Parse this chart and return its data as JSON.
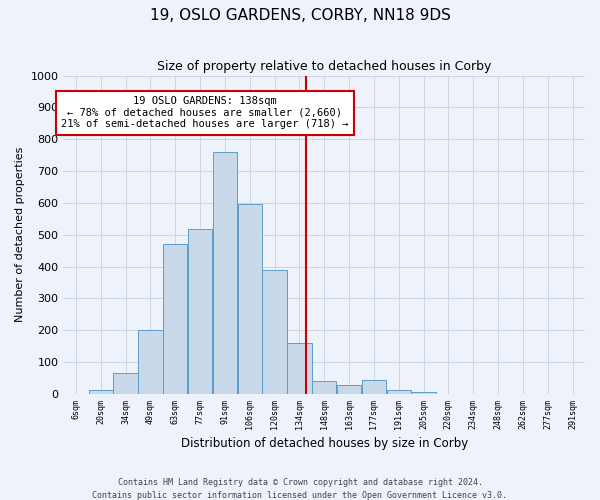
{
  "title": "19, OSLO GARDENS, CORBY, NN18 9DS",
  "subtitle": "Size of property relative to detached houses in Corby",
  "xlabel": "Distribution of detached houses by size in Corby",
  "ylabel": "Number of detached properties",
  "bar_labels": [
    "6sqm",
    "20sqm",
    "34sqm",
    "49sqm",
    "63sqm",
    "77sqm",
    "91sqm",
    "106sqm",
    "120sqm",
    "134sqm",
    "148sqm",
    "163sqm",
    "177sqm",
    "191sqm",
    "205sqm",
    "220sqm",
    "234sqm",
    "248sqm",
    "262sqm",
    "277sqm",
    "291sqm"
  ],
  "bar_values": [
    0,
    13,
    65,
    200,
    470,
    518,
    760,
    597,
    390,
    160,
    40,
    27,
    43,
    11,
    5,
    0,
    0,
    0,
    0,
    0,
    0
  ],
  "bar_color": "#c9d9ea",
  "bar_edge_color": "#5a9ec8",
  "vline_color": "#cc0000",
  "annotation_title": "19 OSLO GARDENS: 138sqm",
  "annotation_line1": "← 78% of detached houses are smaller (2,660)",
  "annotation_line2": "21% of semi-detached houses are larger (718) →",
  "annotation_box_color": "#ffffff",
  "annotation_box_edge": "#cc0000",
  "ylim": [
    0,
    1000
  ],
  "yticks": [
    0,
    100,
    200,
    300,
    400,
    500,
    600,
    700,
    800,
    900,
    1000
  ],
  "footer_line1": "Contains HM Land Registry data © Crown copyright and database right 2024.",
  "footer_line2": "Contains public sector information licensed under the Open Government Licence v3.0.",
  "grid_color": "#c8d0e0",
  "background_color": "#eef2fa",
  "title_fontsize": 11,
  "subtitle_fontsize": 9,
  "ylabel_fontsize": 8,
  "xlabel_fontsize": 8.5
}
